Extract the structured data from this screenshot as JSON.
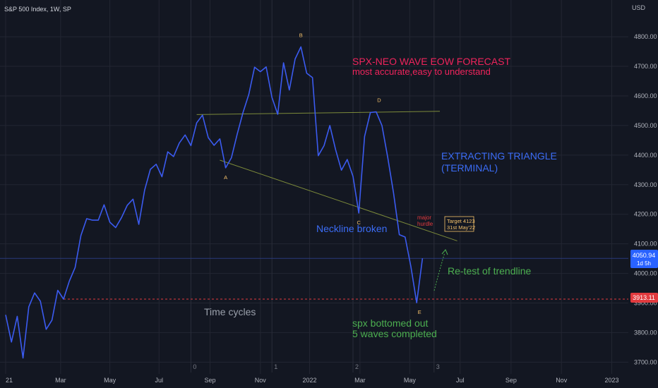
{
  "symbol_title": "S&P 500 Index, 1W, SP",
  "currency": "USD",
  "colors": {
    "background": "#131722",
    "price_line": "#3b5bf0",
    "grid": "#232632",
    "trendline": "#7c8a3a",
    "support": "#e03a3e",
    "last_price_bg": "#2962ff",
    "title_pink": "#f0245c",
    "blue_text": "#3b6cf5",
    "green_text": "#4caf50",
    "wave_label": "#f5c26b",
    "gray_text": "#9aa0ab"
  },
  "annotations": {
    "headline": "SPX-NEO WAVE EOW FORECAST",
    "subhead": "most accurate,easy to understand",
    "triangle_line1": "EXTRACTING TRIANGLE",
    "triangle_line2": "(TERMINAL)",
    "neckline": "Neckline broken",
    "hurdle_line1": "major",
    "hurdle_line2": "hurdle",
    "target_line1": "Target 4123",
    "target_line2": "31st May'22",
    "retest": "Re-test of trendline",
    "time_cycles": "Time cycles",
    "bottom_line1": "spx  bottomed out",
    "bottom_line2": "5 waves completed"
  },
  "wave_labels": [
    "A",
    "B",
    "C",
    "D",
    "E"
  ],
  "cycle_labels": [
    "0",
    "1",
    "2",
    "3"
  ],
  "price_badges": {
    "last_price": "4050.94",
    "countdown": "1d 5h",
    "support_price": "3913.11"
  },
  "chart_data": {
    "type": "line",
    "title": "S&P 500 Index, 1W, SP",
    "y_ticks": [
      3700,
      3800,
      3900,
      4000,
      4100,
      4200,
      4300,
      4400,
      4500,
      4600,
      4700,
      4800
    ],
    "y_tick_labels": [
      "3700.00",
      "3800.00",
      "3900.00",
      "4000.00",
      "4100.00",
      "4200.00",
      "4300.00",
      "4400.00",
      "4500.00",
      "4600.00",
      "4700.00",
      "4800.00"
    ],
    "ylim": [
      3690,
      4900
    ],
    "x_ticks": [
      {
        "label": "21",
        "week": 0
      },
      {
        "label": "Mar",
        "week": 9.5
      },
      {
        "label": "May",
        "week": 18
      },
      {
        "label": "Jul",
        "week": 26.5
      },
      {
        "label": "Sep",
        "week": 35.3
      },
      {
        "label": "Nov",
        "week": 44
      },
      {
        "label": "2022",
        "week": 52.5
      },
      {
        "label": "Mar",
        "week": 61.2
      },
      {
        "label": "May",
        "week": 69.8
      },
      {
        "label": "Jul",
        "week": 78.5
      },
      {
        "label": "Sep",
        "week": 87.3
      },
      {
        "label": "Nov",
        "week": 96
      },
      {
        "label": "2023",
        "week": 104.7
      }
    ],
    "series": [
      {
        "points": [
          [
            0,
            3860
          ],
          [
            1,
            3768
          ],
          [
            2,
            3855
          ],
          [
            3,
            3714
          ],
          [
            4,
            3887
          ],
          [
            5,
            3934
          ],
          [
            6,
            3906
          ],
          [
            7,
            3811
          ],
          [
            8,
            3842
          ],
          [
            9,
            3943
          ],
          [
            10,
            3913
          ],
          [
            11,
            3974
          ],
          [
            12,
            4020
          ],
          [
            13,
            4128
          ],
          [
            14,
            4185
          ],
          [
            15,
            4180
          ],
          [
            16,
            4180
          ],
          [
            17,
            4232
          ],
          [
            18,
            4173
          ],
          [
            19,
            4155
          ],
          [
            20,
            4188
          ],
          [
            21,
            4230
          ],
          [
            22,
            4251
          ],
          [
            23,
            4166
          ],
          [
            24,
            4281
          ],
          [
            25,
            4352
          ],
          [
            26,
            4369
          ],
          [
            27,
            4327
          ],
          [
            28,
            4411
          ],
          [
            29,
            4395
          ],
          [
            30,
            4441
          ],
          [
            31,
            4468
          ],
          [
            32,
            4432
          ],
          [
            33,
            4509
          ],
          [
            34,
            4535
          ],
          [
            35,
            4459
          ],
          [
            36,
            4433
          ],
          [
            37,
            4455
          ],
          [
            38,
            4357
          ],
          [
            39,
            4391
          ],
          [
            40,
            4471
          ],
          [
            41,
            4544
          ],
          [
            42,
            4605
          ],
          [
            43,
            4697
          ],
          [
            44,
            4682
          ],
          [
            45,
            4698
          ],
          [
            46,
            4595
          ],
          [
            47,
            4538
          ],
          [
            48,
            4712
          ],
          [
            49,
            4620
          ],
          [
            50,
            4725
          ],
          [
            51,
            4766
          ],
          [
            52,
            4677
          ],
          [
            53,
            4662
          ],
          [
            54,
            4398
          ],
          [
            55,
            4432
          ],
          [
            56,
            4500
          ],
          [
            57,
            4418
          ],
          [
            58,
            4349
          ],
          [
            59,
            4385
          ],
          [
            60,
            4328
          ],
          [
            61,
            4204
          ],
          [
            62,
            4463
          ],
          [
            63,
            4544
          ],
          [
            64,
            4546
          ],
          [
            65,
            4500
          ],
          [
            66,
            4392
          ],
          [
            67,
            4272
          ],
          [
            68,
            4131
          ],
          [
            69,
            4123
          ],
          [
            70,
            4023
          ],
          [
            71,
            3901
          ],
          [
            72,
            4050.94
          ]
        ]
      }
    ],
    "trendlines": [
      {
        "name": "upper",
        "from": [
          33,
          4537
        ],
        "to": [
          75,
          4548
        ]
      },
      {
        "name": "lower",
        "from": [
          37,
          4383
        ],
        "to": [
          78,
          4110
        ]
      }
    ],
    "support_level": 3913.11,
    "last_price": 4050.94,
    "cycle_markers_week": [
      32,
      46,
      60,
      74
    ],
    "wave_points": [
      {
        "label": "A",
        "week": 38,
        "value": 4357
      },
      {
        "label": "B",
        "week": 51,
        "value": 4766
      },
      {
        "label": "C",
        "week": 61,
        "value": 4204
      },
      {
        "label": "D",
        "week": 64.5,
        "value": 4546
      },
      {
        "label": "E",
        "week": 71.5,
        "value": 3901
      }
    ]
  }
}
